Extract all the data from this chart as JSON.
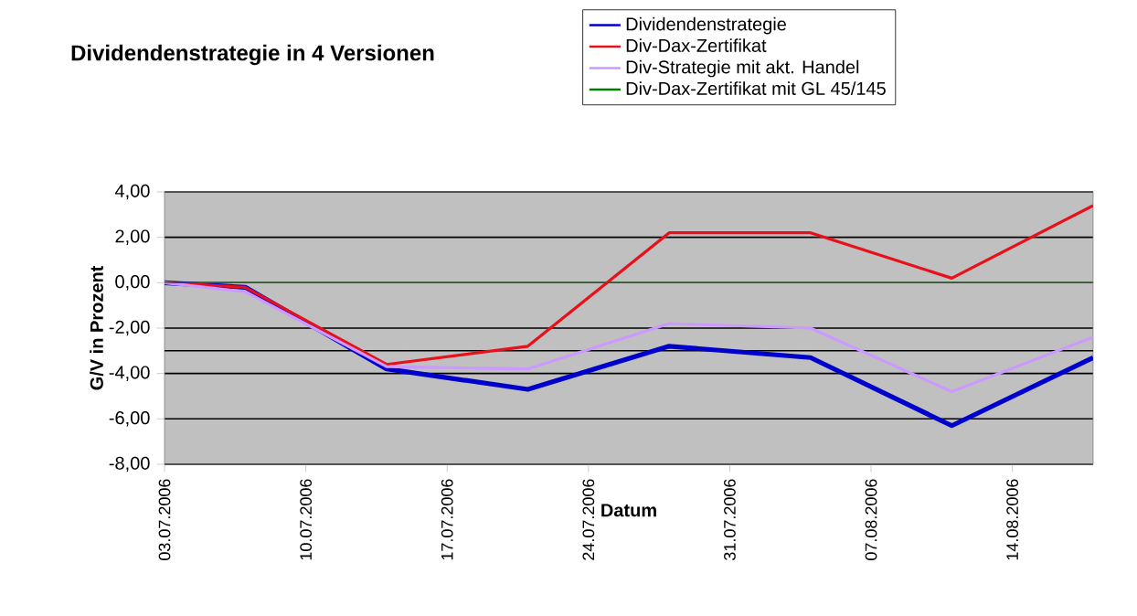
{
  "chart_data": {
    "type": "line",
    "title": "Dividendenstrategie in 4 Versionen",
    "xlabel": "Datum",
    "ylabel": "G/V in Prozent",
    "x": [
      "2006-07-03",
      "2006-07-07",
      "2006-07-14",
      "2006-07-21",
      "2006-07-28",
      "2006-08-04",
      "2006-08-11",
      "2006-08-18"
    ],
    "series": [
      {
        "name": "Dividendenstrategie",
        "color": "#0000cc",
        "values": [
          0,
          -0.2,
          -3.8,
          -4.7,
          -2.8,
          -3.3,
          -6.3,
          -3.3
        ]
      },
      {
        "name": "Div-Dax-Zertifikat",
        "color": "#e8101a",
        "values": [
          0,
          -0.2,
          -3.6,
          -2.8,
          2.2,
          2.2,
          0.2,
          3.4
        ]
      },
      {
        "name": "Div-Strategie mit akt. Handel",
        "color": "#cc99ff",
        "values": [
          0,
          -0.4,
          -3.7,
          -3.8,
          -1.8,
          -2.0,
          -4.8,
          -2.4
        ]
      },
      {
        "name": "Div-Dax-Zertifikat mit GL 45/145",
        "color": "#008000",
        "values": [
          0,
          0,
          0,
          0,
          0,
          0,
          0,
          0
        ]
      }
    ],
    "xlim": [
      "2006-07-03",
      "2006-08-18"
    ],
    "xticks": [
      {
        "value": "2006-07-03",
        "label": "03.07.2006"
      },
      {
        "value": "2006-07-10",
        "label": "10.07.2006"
      },
      {
        "value": "2006-07-17",
        "label": "17.07.2006"
      },
      {
        "value": "2006-07-24",
        "label": "24.07.2006"
      },
      {
        "value": "2006-07-31",
        "label": "31.07.2006"
      },
      {
        "value": "2006-08-07",
        "label": "07.08.2006"
      },
      {
        "value": "2006-08-14",
        "label": "14.08.2006"
      }
    ],
    "ylim": [
      -8,
      4
    ],
    "yticks": [
      {
        "value": -8,
        "label": "-8,00"
      },
      {
        "value": -6,
        "label": "-6,00"
      },
      {
        "value": -4,
        "label": "-4,00"
      },
      {
        "value": -2,
        "label": "-2,00"
      },
      {
        "value": 0,
        "label": "0,00"
      },
      {
        "value": 2,
        "label": "2,00"
      },
      {
        "value": 4,
        "label": "4,00"
      }
    ],
    "ref_lines": [
      {
        "axis": "y",
        "value": -3,
        "color": "#000000"
      }
    ],
    "grid": "y",
    "legend": "top right",
    "marker": "none",
    "line_style": "solid"
  }
}
